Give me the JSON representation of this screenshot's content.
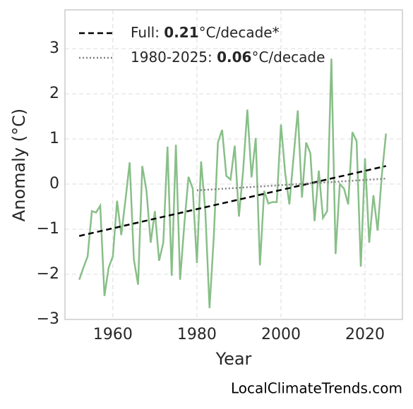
{
  "chart_data": {
    "type": "line",
    "xlabel": "Year",
    "ylabel": "Anomaly (°C)",
    "watermark": "LocalClimateTrends.com",
    "x": [
      1952,
      1953,
      1954,
      1955,
      1956,
      1957,
      1958,
      1959,
      1960,
      1961,
      1962,
      1963,
      1964,
      1965,
      1966,
      1967,
      1968,
      1969,
      1970,
      1971,
      1972,
      1973,
      1974,
      1975,
      1976,
      1977,
      1978,
      1979,
      1980,
      1981,
      1982,
      1983,
      1984,
      1985,
      1986,
      1987,
      1988,
      1989,
      1990,
      1991,
      1992,
      1993,
      1994,
      1995,
      1996,
      1997,
      1998,
      1999,
      2000,
      2001,
      2002,
      2003,
      2004,
      2005,
      2006,
      2007,
      2008,
      2009,
      2010,
      2011,
      2012,
      2013,
      2014,
      2015,
      2016,
      2017,
      2018,
      2019,
      2020,
      2021,
      2022,
      2023,
      2024,
      2025
    ],
    "series": [
      {
        "color": "#88bf88",
        "values": [
          -2.12,
          -1.85,
          -1.6,
          -0.6,
          -0.63,
          -0.48,
          -2.48,
          -1.85,
          -1.6,
          -0.37,
          -1.13,
          -0.35,
          0.48,
          -1.67,
          -2.23,
          0.4,
          -0.15,
          -1.3,
          -0.6,
          -1.7,
          -1.3,
          0.83,
          -2.03,
          0.87,
          -2.12,
          -0.9,
          0.16,
          -0.1,
          -1.75,
          0.5,
          -0.6,
          -2.75,
          -1.2,
          0.92,
          1.2,
          0.18,
          0.1,
          0.85,
          -0.72,
          0.3,
          1.65,
          0.15,
          1.02,
          -1.8,
          -0.15,
          -0.43,
          -0.4,
          -0.4,
          1.32,
          0.25,
          -0.45,
          0.6,
          1.63,
          -0.3,
          0.92,
          0.68,
          -0.82,
          0.3,
          -0.75,
          -0.6,
          2.78,
          -1.55,
          0,
          -0.1,
          -0.45,
          1.15,
          0.95,
          -1.83,
          0.57,
          -1.3,
          -0.25,
          -1.03,
          0.2,
          1.12
        ]
      }
    ],
    "trends": [
      {
        "label_prefix": "Full: ",
        "rate": 0.21,
        "label_suffix": "°C/decade*",
        "color": "#000000",
        "dash": "dashed",
        "x": [
          1952,
          2025
        ],
        "values": [
          -1.15,
          0.4
        ]
      },
      {
        "label_prefix": "1980-2025: ",
        "rate": 0.06,
        "label_suffix": "°C/decade",
        "color": "#808080",
        "dash": "dotted",
        "x": [
          1980,
          2025
        ],
        "values": [
          -0.14,
          0.12
        ]
      }
    ],
    "xlim": [
      1948.6,
      2028.9
    ],
    "ylim": [
      -3,
      3.86
    ],
    "xticks": [
      1960,
      1980,
      2000,
      2020
    ],
    "yticks": [
      {
        "value": -3,
        "label": "−3"
      },
      {
        "value": -2,
        "label": "−2"
      },
      {
        "value": -1,
        "label": "−1"
      },
      0,
      1,
      2,
      3
    ],
    "grid": true,
    "legend": "upper left"
  }
}
